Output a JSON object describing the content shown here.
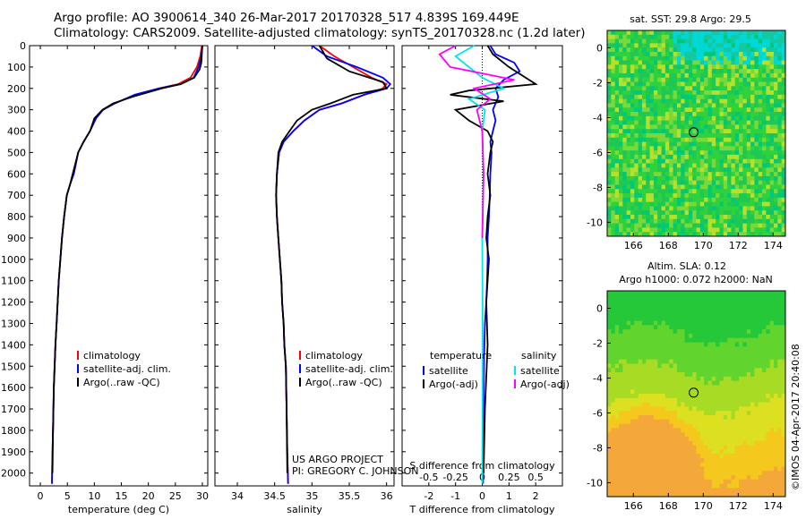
{
  "header": {
    "line1": "Argo profile: AO 3900614_340 26-Mar-2017 20170328_517 4.839S 169.449E",
    "line2": "Climatology: CARS2009. Satellite-adjusted climatology: synTS_20170328.nc (1.2d later)"
  },
  "credit": {
    "project": "US ARGO PROJECT",
    "pi": "PI: GREGORY C. JOHNSON",
    "stamp": "©IMOS 04-Apr-2017 20:40:08"
  },
  "colors": {
    "climatology": "#ff0000",
    "satellite": "#0000ff",
    "argo": "#000000",
    "salinity_satellite": "#00e5e5",
    "salinity_argo": "#ff00ff"
  },
  "chart_data": [
    {
      "type": "line",
      "name": "temperature-profile",
      "xlabel": "temperature (deg C)",
      "ylabel": "",
      "xlim": [
        -2,
        31
      ],
      "ylim": [
        2060,
        0
      ],
      "xticks": [
        0,
        5,
        10,
        15,
        20,
        25,
        30
      ],
      "yticks": [
        0,
        100,
        200,
        300,
        400,
        500,
        600,
        700,
        800,
        900,
        1000,
        1100,
        1200,
        1300,
        1400,
        1500,
        1600,
        1700,
        1800,
        1900,
        2000
      ],
      "legend": [
        "climatology",
        "satellite-adj. clim.",
        "Argo(..raw -QC)"
      ],
      "legend_position": "lower-center",
      "series": [
        {
          "name": "climatology",
          "color": "#ff0000",
          "x": [
            29.9,
            29.6,
            29.0,
            27.8,
            25.5,
            22.0,
            17.5,
            13.8,
            11.6,
            10.3,
            9.2,
            8.0,
            7.0,
            6.2,
            5.5,
            4.9,
            4.4,
            4.0,
            3.7,
            3.4,
            3.2,
            3.0,
            2.8,
            2.65,
            2.5,
            2.35,
            2.25,
            2.15
          ],
          "y": [
            0,
            50,
            100,
            150,
            180,
            200,
            230,
            270,
            300,
            340,
            400,
            450,
            500,
            600,
            650,
            700,
            800,
            900,
            1000,
            1100,
            1200,
            1300,
            1400,
            1500,
            1600,
            1800,
            1900,
            2050
          ]
        },
        {
          "name": "satellite-adj. clim.",
          "color": "#0000ff",
          "x": [
            30.0,
            29.8,
            29.3,
            28.4,
            26.0,
            22.0,
            17.5,
            13.8,
            11.6,
            10.3,
            9.2,
            8.0,
            7.0,
            6.2,
            5.5,
            4.9,
            4.4,
            4.0,
            3.7,
            3.4,
            3.2,
            3.0,
            2.8,
            2.65,
            2.5,
            2.35,
            2.25,
            2.15
          ],
          "y": [
            0,
            50,
            100,
            150,
            180,
            200,
            230,
            270,
            300,
            340,
            400,
            450,
            500,
            600,
            650,
            700,
            800,
            900,
            1000,
            1100,
            1200,
            1300,
            1400,
            1500,
            1600,
            1800,
            1900,
            2050
          ]
        },
        {
          "name": "Argo(..raw -QC)",
          "color": "#000000",
          "x": [
            30.0,
            29.9,
            29.8,
            29.5,
            28.5,
            26.0,
            22.5,
            17.0,
            13.5,
            11.5,
            10.0,
            9.2,
            8.0,
            7.0,
            6.0,
            5.5,
            4.9,
            4.4,
            4.0,
            3.7,
            3.4,
            3.2,
            3.0,
            2.8,
            2.65,
            2.5,
            2.35,
            2.25
          ],
          "y": [
            0,
            40,
            80,
            110,
            150,
            180,
            200,
            240,
            270,
            300,
            340,
            400,
            450,
            500,
            600,
            650,
            700,
            800,
            900,
            1000,
            1100,
            1200,
            1300,
            1400,
            1500,
            1600,
            1800,
            2000
          ]
        }
      ]
    },
    {
      "type": "line",
      "name": "salinity-profile",
      "xlabel": "salinity",
      "xlim": [
        33.7,
        36.1
      ],
      "ylim": [
        2060,
        0
      ],
      "xticks": [
        34,
        34.5,
        35,
        35.5,
        36
      ],
      "legend": [
        "climatology",
        "satellite-adj. clim.",
        "Argo(..raw -QC)"
      ],
      "legend_position": "lower-center",
      "series": [
        {
          "name": "climatology",
          "color": "#ff0000",
          "x": [
            35.1,
            35.3,
            35.55,
            35.8,
            36.0,
            35.95,
            35.7,
            35.4,
            35.1,
            34.9,
            34.75,
            34.62,
            34.56,
            34.53,
            34.52,
            34.53,
            34.55,
            34.57,
            34.59,
            34.6,
            34.62,
            34.63,
            34.65,
            34.66,
            34.67,
            34.68
          ],
          "y": [
            0,
            50,
            100,
            150,
            180,
            200,
            230,
            270,
            300,
            350,
            400,
            450,
            500,
            600,
            700,
            800,
            900,
            1000,
            1100,
            1200,
            1300,
            1400,
            1500,
            1700,
            1900,
            2050
          ]
        },
        {
          "name": "satellite-adj. clim.",
          "color": "#0000ff",
          "x": [
            35.0,
            35.2,
            35.6,
            35.95,
            36.05,
            36.0,
            35.7,
            35.4,
            35.1,
            34.9,
            34.75,
            34.62,
            34.56,
            34.53,
            34.52,
            34.53,
            34.55,
            34.57,
            34.59,
            34.6,
            34.62,
            34.63,
            34.65,
            34.66,
            34.67,
            34.68
          ],
          "y": [
            0,
            50,
            100,
            150,
            180,
            200,
            230,
            270,
            300,
            350,
            400,
            450,
            500,
            600,
            700,
            800,
            900,
            1000,
            1100,
            1200,
            1300,
            1400,
            1500,
            1700,
            1900,
            2050
          ]
        },
        {
          "name": "Argo(..raw -QC)",
          "color": "#000000",
          "x": [
            35.1,
            35.2,
            35.5,
            35.95,
            36.0,
            35.55,
            35.25,
            35.0,
            34.8,
            34.7,
            34.6,
            34.55,
            34.53,
            34.52,
            34.53,
            34.55,
            34.57,
            34.59,
            34.6,
            34.62,
            34.63,
            34.65,
            34.66,
            34.67
          ],
          "y": [
            0,
            60,
            120,
            170,
            200,
            230,
            270,
            300,
            350,
            400,
            450,
            500,
            600,
            700,
            800,
            900,
            1000,
            1100,
            1200,
            1300,
            1400,
            1500,
            1700,
            2000
          ]
        }
      ]
    },
    {
      "type": "line",
      "name": "difference-profile",
      "xlabel": "T difference from climatology",
      "xlabel_top": "S difference from climatology",
      "xlim": [
        -3,
        3
      ],
      "ylim": [
        2060,
        0
      ],
      "xticks": [
        -2,
        -1,
        0,
        1,
        2
      ],
      "xticks_salinity_labels": [
        "-0.5",
        "-0.25",
        "0",
        "0.25",
        "0.5"
      ],
      "xticks_salinity_positions": [
        -2,
        -1,
        0,
        1,
        2
      ],
      "legend_titles": [
        "temperature",
        "salinity"
      ],
      "legend": [
        {
          "label": "satellite",
          "group": "temperature",
          "color": "#0000ff"
        },
        {
          "label": "Argo(-adj)",
          "group": "temperature",
          "color": "#000000"
        },
        {
          "label": "satellite",
          "group": "salinity",
          "color": "#00e5e5"
        },
        {
          "label": "Argo(-adj)",
          "group": "salinity",
          "color": "#ff00ff"
        }
      ],
      "legend_position": "lower-center",
      "series": [
        {
          "name": "T satellite",
          "color": "#0000ff",
          "x": [
            0.3,
            0.5,
            1.2,
            1.4,
            0.8,
            0.5,
            0.6,
            0.4,
            0.5,
            0.4,
            0.3,
            0.35,
            0.3,
            0.28,
            0.25,
            0.2,
            0.2,
            0.18,
            0.15,
            0.1,
            0.08,
            0.06,
            0.05,
            0.03
          ],
          "y": [
            0,
            40,
            80,
            120,
            160,
            200,
            240,
            300,
            350,
            400,
            450,
            500,
            600,
            700,
            800,
            900,
            1000,
            1100,
            1200,
            1300,
            1400,
            1500,
            1700,
            2050
          ]
        },
        {
          "name": "T Argo(-adj)",
          "color": "#000000",
          "x": [
            0.2,
            0.4,
            1.0,
            2.0,
            -0.5,
            -1.2,
            0.8,
            -1.0,
            -0.5,
            0.2,
            0.4,
            0.3,
            0.2,
            0.3,
            0.2,
            0.15,
            0.25,
            0.2,
            0.15,
            0.2,
            0.1,
            0.05
          ],
          "y": [
            0,
            40,
            100,
            180,
            210,
            230,
            260,
            300,
            350,
            400,
            450,
            500,
            600,
            700,
            800,
            900,
            1000,
            1100,
            1200,
            1400,
            1700,
            2000
          ]
        },
        {
          "name": "S satellite",
          "color": "#00e5e5",
          "x": [
            -0.3,
            -1.0,
            -0.5,
            0.0,
            0.8,
            -0.5,
            0.1,
            0.0,
            0.05,
            0.0,
            0.02,
            0.0
          ],
          "y": [
            0,
            50,
            100,
            150,
            200,
            250,
            300,
            400,
            600,
            900,
            1400,
            2050
          ]
        },
        {
          "name": "S Argo(-adj)",
          "color": "#ff00ff",
          "x": [
            -1.0,
            -1.6,
            -1.2,
            1.2,
            -0.3,
            0.3,
            -0.2,
            0.0,
            0.05,
            0.0
          ],
          "y": [
            0,
            40,
            100,
            160,
            200,
            250,
            300,
            400,
            600,
            900
          ]
        }
      ]
    },
    {
      "type": "heatmap",
      "name": "sst-map",
      "title": "sat. SST: 29.8 Argo: 29.5",
      "xlim": [
        164.5,
        174.7
      ],
      "ylim": [
        -10.8,
        1.0
      ],
      "xticks": [
        166,
        168,
        170,
        172,
        174
      ],
      "yticks": [
        0,
        -2,
        -4,
        -6,
        -8,
        -10
      ],
      "marker": {
        "lon": 169.449,
        "lat": -4.839
      }
    },
    {
      "type": "heatmap",
      "name": "sla-map",
      "title": "Altim. SLA: 0.12",
      "subtitle": "Argo h1000: 0.072 h2000: NaN",
      "xlim": [
        164.5,
        174.7
      ],
      "ylim": [
        -10.8,
        1.0
      ],
      "xticks": [
        166,
        168,
        170,
        172,
        174
      ],
      "yticks": [
        0,
        -2,
        -4,
        -6,
        -8,
        -10
      ],
      "marker": {
        "lon": 169.449,
        "lat": -4.839
      }
    }
  ]
}
